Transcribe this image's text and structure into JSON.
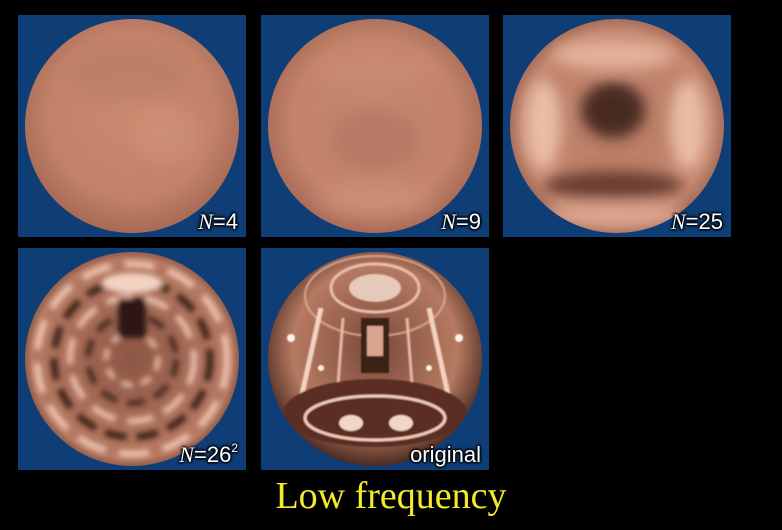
{
  "panels": [
    {
      "label_var": "N",
      "label_rest": "=4",
      "label_sup": ""
    },
    {
      "label_var": "N",
      "label_rest": "=9",
      "label_sup": ""
    },
    {
      "label_var": "N",
      "label_rest": "=25",
      "label_sup": ""
    },
    {
      "label_var": "N",
      "label_rest": "=26",
      "label_sup": "2"
    },
    {
      "label_var": "",
      "label_rest": "original",
      "label_sup": ""
    }
  ],
  "caption": "Low frequency",
  "colors": {
    "panel_background": "#0f3d75",
    "caption": "#f5ea2a",
    "sphere_base": "#c7856b"
  }
}
